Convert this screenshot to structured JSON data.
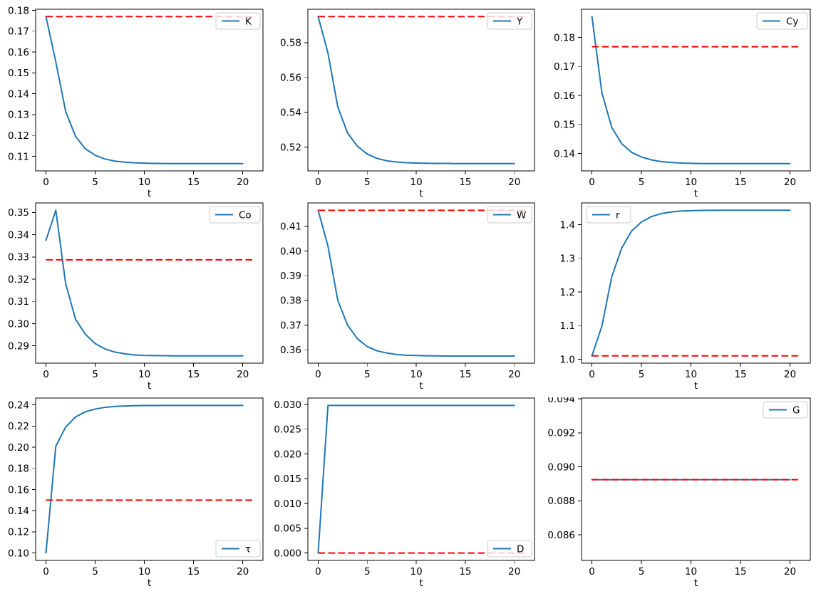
{
  "figure": {
    "background": "#ffffff",
    "series_color": "#1f77b4",
    "steady_state_color": "#ff0000",
    "axis_color": "#000000",
    "xlabel": "t"
  },
  "chart_data": [
    {
      "type": "line",
      "legend_label": "K",
      "legend_loc": "upper-right",
      "xlabel": "t",
      "x": [
        0,
        1,
        2,
        3,
        4,
        5,
        6,
        7,
        8,
        9,
        10,
        11,
        12,
        13,
        14,
        15,
        16,
        17,
        18,
        19,
        20
      ],
      "values": [
        0.177,
        0.1553,
        0.1315,
        0.1196,
        0.1136,
        0.1105,
        0.1087,
        0.1077,
        0.1072,
        0.1069,
        0.1067,
        0.1066,
        0.10655,
        0.1065,
        0.1065,
        0.1065,
        0.1065,
        0.1065,
        0.1065,
        0.1065,
        0.1065
      ],
      "steady_state": 0.177,
      "steady_state_x": [
        0,
        21
      ],
      "xlim": [
        -1.05,
        22.05
      ],
      "ylim": [
        0.103,
        0.1805
      ],
      "xticks": [
        "0",
        "5",
        "10",
        "15",
        "20"
      ],
      "yticks": [
        "0.11",
        "0.12",
        "0.13",
        "0.14",
        "0.15",
        "0.16",
        "0.17",
        "0.18"
      ],
      "grid": false
    },
    {
      "type": "line",
      "legend_label": "Y",
      "legend_loc": "upper-right",
      "xlabel": "t",
      "x": [
        0,
        1,
        2,
        3,
        4,
        5,
        6,
        7,
        8,
        9,
        10,
        11,
        12,
        13,
        14,
        15,
        16,
        17,
        18,
        19,
        20
      ],
      "values": [
        0.595,
        0.574,
        0.543,
        0.528,
        0.5205,
        0.516,
        0.5135,
        0.5121,
        0.5114,
        0.511,
        0.5108,
        0.5107,
        0.5106,
        0.5106,
        0.5105,
        0.5105,
        0.5105,
        0.5105,
        0.5105,
        0.5105,
        0.5105
      ],
      "steady_state": 0.595,
      "steady_state_x": [
        0,
        21
      ],
      "xlim": [
        -1.05,
        22.05
      ],
      "ylim": [
        0.5063,
        0.5992
      ],
      "xticks": [
        "0",
        "5",
        "10",
        "15",
        "20"
      ],
      "yticks": [
        "0.52",
        "0.54",
        "0.56",
        "0.58"
      ],
      "grid": false
    },
    {
      "type": "line",
      "legend_label": "Cy",
      "legend_loc": "upper-right",
      "xlabel": "t",
      "x": [
        0,
        1,
        2,
        3,
        4,
        5,
        6,
        7,
        8,
        9,
        10,
        11,
        12,
        13,
        14,
        15,
        16,
        17,
        18,
        19,
        20
      ],
      "values": [
        0.1872,
        0.161,
        0.149,
        0.1434,
        0.1404,
        0.1388,
        0.1378,
        0.1372,
        0.1369,
        0.1367,
        0.1366,
        0.13655,
        0.1365,
        0.1365,
        0.1365,
        0.1365,
        0.1365,
        0.1365,
        0.1365,
        0.1365,
        0.1365
      ],
      "steady_state": 0.1768,
      "steady_state_x": [
        0,
        21
      ],
      "xlim": [
        -1.05,
        22.05
      ],
      "ylim": [
        0.134,
        0.1897
      ],
      "xticks": [
        "0",
        "5",
        "10",
        "15",
        "20"
      ],
      "yticks": [
        "0.14",
        "0.15",
        "0.16",
        "0.17",
        "0.18"
      ],
      "grid": false
    },
    {
      "type": "line",
      "legend_label": "Co",
      "legend_loc": "upper-right",
      "xlabel": "t",
      "x": [
        0,
        1,
        2,
        3,
        4,
        5,
        6,
        7,
        8,
        9,
        10,
        11,
        12,
        13,
        14,
        15,
        16,
        17,
        18,
        19,
        20
      ],
      "values": [
        0.3375,
        0.351,
        0.318,
        0.302,
        0.2952,
        0.291,
        0.2886,
        0.2872,
        0.2864,
        0.2859,
        0.2857,
        0.2856,
        0.28555,
        0.2855,
        0.2855,
        0.2855,
        0.2855,
        0.2855,
        0.2855,
        0.2855,
        0.2855
      ],
      "steady_state": 0.3287,
      "steady_state_x": [
        0,
        21
      ],
      "xlim": [
        -1.05,
        22.05
      ],
      "ylim": [
        0.2822,
        0.3543
      ],
      "xticks": [
        "0",
        "5",
        "10",
        "15",
        "20"
      ],
      "yticks": [
        "0.29",
        "0.30",
        "0.31",
        "0.32",
        "0.33",
        "0.34",
        "0.35"
      ],
      "grid": false
    },
    {
      "type": "line",
      "legend_label": "W",
      "legend_loc": "upper-right",
      "xlabel": "t",
      "x": [
        0,
        1,
        2,
        3,
        4,
        5,
        6,
        7,
        8,
        9,
        10,
        11,
        12,
        13,
        14,
        15,
        16,
        17,
        18,
        19,
        20
      ],
      "values": [
        0.4165,
        0.402,
        0.38,
        0.37,
        0.3645,
        0.3613,
        0.3596,
        0.3587,
        0.3581,
        0.3578,
        0.3577,
        0.3576,
        0.35755,
        0.3575,
        0.3575,
        0.3575,
        0.3575,
        0.3575,
        0.3575,
        0.3575,
        0.3575
      ],
      "steady_state": 0.4165,
      "steady_state_x": [
        0,
        21
      ],
      "xlim": [
        -1.05,
        22.05
      ],
      "ylim": [
        0.3546,
        0.4195
      ],
      "xticks": [
        "0",
        "5",
        "10",
        "15",
        "20"
      ],
      "yticks": [
        "0.36",
        "0.37",
        "0.38",
        "0.39",
        "0.40",
        "0.41"
      ],
      "grid": false
    },
    {
      "type": "line",
      "legend_label": "r",
      "legend_loc": "upper-left",
      "xlabel": "t",
      "x": [
        0,
        1,
        2,
        3,
        4,
        5,
        6,
        7,
        8,
        9,
        10,
        11,
        12,
        13,
        14,
        15,
        16,
        17,
        18,
        19,
        20
      ],
      "values": [
        1.01,
        1.098,
        1.245,
        1.33,
        1.381,
        1.408,
        1.424,
        1.433,
        1.438,
        1.4405,
        1.4418,
        1.4425,
        1.4428,
        1.443,
        1.443,
        1.443,
        1.443,
        1.443,
        1.443,
        1.443,
        1.443
      ],
      "steady_state": 1.01,
      "steady_state_x": [
        0,
        21
      ],
      "xlim": [
        -1.05,
        22.05
      ],
      "ylim": [
        0.9883,
        1.4647
      ],
      "xticks": [
        "0",
        "5",
        "10",
        "15",
        "20"
      ],
      "yticks": [
        "1.0",
        "1.1",
        "1.2",
        "1.3",
        "1.4"
      ],
      "grid": false
    },
    {
      "type": "line",
      "legend_label": "τ",
      "legend_loc": "lower-right",
      "xlabel": "t",
      "x": [
        0,
        1,
        2,
        3,
        4,
        5,
        6,
        7,
        8,
        9,
        10,
        11,
        12,
        13,
        14,
        15,
        16,
        17,
        18,
        19,
        20
      ],
      "values": [
        0.1,
        0.201,
        0.219,
        0.2286,
        0.2335,
        0.2361,
        0.2377,
        0.2386,
        0.239,
        0.2393,
        0.2394,
        0.23945,
        0.2395,
        0.2395,
        0.2395,
        0.2395,
        0.2395,
        0.2395,
        0.2395,
        0.2395,
        0.2395
      ],
      "steady_state": 0.15,
      "steady_state_x": [
        0,
        21
      ],
      "xlim": [
        -1.05,
        22.05
      ],
      "ylim": [
        0.093,
        0.2465
      ],
      "xticks": [
        "0",
        "5",
        "10",
        "15",
        "20"
      ],
      "yticks": [
        "0.10",
        "0.12",
        "0.14",
        "0.16",
        "0.18",
        "0.20",
        "0.22",
        "0.24"
      ],
      "grid": false
    },
    {
      "type": "line",
      "legend_label": "D",
      "legend_loc": "lower-right",
      "xlabel": "t",
      "x": [
        0,
        1,
        2,
        3,
        4,
        5,
        6,
        7,
        8,
        9,
        10,
        11,
        12,
        13,
        14,
        15,
        16,
        17,
        18,
        19,
        20
      ],
      "values": [
        0,
        0.0298,
        0.0298,
        0.0298,
        0.0298,
        0.0298,
        0.0298,
        0.0298,
        0.0298,
        0.0298,
        0.0298,
        0.0298,
        0.0298,
        0.0298,
        0.0298,
        0.0298,
        0.0298,
        0.0298,
        0.0298,
        0.0298,
        0.0298
      ],
      "steady_state": 0,
      "steady_state_x": [
        0,
        21
      ],
      "xlim": [
        -1.05,
        22.05
      ],
      "ylim": [
        -0.0015,
        0.0313
      ],
      "xticks": [
        "0",
        "5",
        "10",
        "15",
        "20"
      ],
      "yticks": [
        "0.000",
        "0.005",
        "0.010",
        "0.015",
        "0.020",
        "0.025",
        "0.030"
      ],
      "grid": false
    },
    {
      "type": "line",
      "legend_label": "G",
      "legend_loc": "upper-right",
      "xlabel": "t",
      "x": [
        0,
        1,
        2,
        3,
        4,
        5,
        6,
        7,
        8,
        9,
        10,
        11,
        12,
        13,
        14,
        15,
        16,
        17,
        18,
        19,
        20
      ],
      "values": [
        0.08925,
        0.08925,
        0.08925,
        0.08925,
        0.08925,
        0.08925,
        0.08925,
        0.08925,
        0.08925,
        0.08925,
        0.08925,
        0.08925,
        0.08925,
        0.08925,
        0.08925,
        0.08925,
        0.08925,
        0.08925,
        0.08925,
        0.08925,
        0.08925
      ],
      "steady_state": 0.08925,
      "steady_state_x": [
        0,
        21
      ],
      "xlim": [
        -1.05,
        22.05
      ],
      "ylim": [
        0.0845,
        0.09405
      ],
      "xticks": [
        "0",
        "5",
        "10",
        "15",
        "20"
      ],
      "yticks": [
        "0.086",
        "0.088",
        "0.090",
        "0.092",
        "0.094"
      ],
      "grid": false
    }
  ]
}
